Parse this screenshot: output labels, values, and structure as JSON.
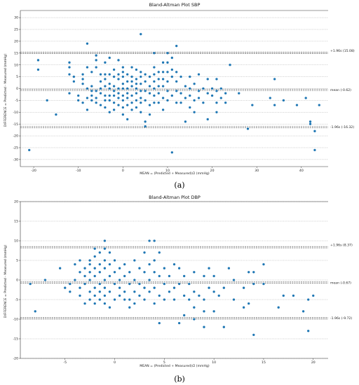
{
  "figure": {
    "panel_a_label": "(a)",
    "panel_b_label": "(b)"
  },
  "chart_data": [
    {
      "type": "scatter",
      "title": "Bland-Altman Plot SBP",
      "xlabel": "MEAN = (Predicted + Measured)/2 (mmHg)",
      "ylabel": "DIFFERENCE = Predicted - Measured (mmHg)",
      "xlim": [
        -23,
        46
      ],
      "ylim": [
        -33,
        33
      ],
      "xticks": [
        -20,
        -10,
        0,
        10,
        20,
        30,
        40
      ],
      "yticks": [
        -30,
        -25,
        -20,
        -15,
        -10,
        -5,
        0,
        5,
        10,
        15,
        20,
        25,
        30
      ],
      "color": "#1f77b4",
      "grid": "dotted horizontal",
      "reference_lines": [
        {
          "value": 15.08,
          "label": "+1.96s (15.08)"
        },
        {
          "value": -0.62,
          "label": "mean (-0.62)"
        },
        {
          "value": -16.32,
          "label": "-1.96s (-16.32)"
        }
      ],
      "points": [
        [
          -21,
          -26
        ],
        [
          -19,
          12
        ],
        [
          -19,
          8
        ],
        [
          -17,
          -5
        ],
        [
          -15,
          -11
        ],
        [
          -12,
          11
        ],
        [
          -12,
          9
        ],
        [
          -12,
          6
        ],
        [
          -12,
          -2
        ],
        [
          -11,
          5
        ],
        [
          -11,
          3
        ],
        [
          -10,
          -5
        ],
        [
          -10,
          -3
        ],
        [
          -9,
          6
        ],
        [
          -9,
          4
        ],
        [
          -9,
          2
        ],
        [
          -9,
          -6
        ],
        [
          -8,
          19
        ],
        [
          -8,
          9
        ],
        [
          -8,
          0
        ],
        [
          -8,
          -4
        ],
        [
          -8,
          -9
        ],
        [
          -7,
          7
        ],
        [
          -7,
          1
        ],
        [
          -7,
          -1
        ],
        [
          -7,
          -3
        ],
        [
          -7,
          -5
        ],
        [
          -6,
          14
        ],
        [
          -6,
          12
        ],
        [
          -6,
          9
        ],
        [
          -6,
          -1
        ],
        [
          -6,
          -4
        ],
        [
          -6,
          -6
        ],
        [
          -5,
          6
        ],
        [
          -5,
          3
        ],
        [
          -5,
          0
        ],
        [
          -5,
          -2
        ],
        [
          -5,
          -7
        ],
        [
          -4,
          11
        ],
        [
          -4,
          6
        ],
        [
          -4,
          4
        ],
        [
          -4,
          1
        ],
        [
          -4,
          -3
        ],
        [
          -4,
          -5
        ],
        [
          -4,
          -8
        ],
        [
          -3,
          13
        ],
        [
          -3,
          6
        ],
        [
          -3,
          2
        ],
        [
          -3,
          0
        ],
        [
          -3,
          -3
        ],
        [
          -3,
          -5
        ],
        [
          -3,
          -10
        ],
        [
          -2,
          8
        ],
        [
          -2,
          5
        ],
        [
          -2,
          1
        ],
        [
          -2,
          -1
        ],
        [
          -2,
          -3
        ],
        [
          -2,
          -6
        ],
        [
          -2,
          -9
        ],
        [
          -1,
          12
        ],
        [
          -1,
          6
        ],
        [
          -1,
          4
        ],
        [
          -1,
          0
        ],
        [
          -1,
          -2
        ],
        [
          -1,
          -4
        ],
        [
          -1,
          -7
        ],
        [
          0,
          9
        ],
        [
          0,
          7
        ],
        [
          0,
          5
        ],
        [
          0,
          2
        ],
        [
          0,
          0
        ],
        [
          0,
          -3
        ],
        [
          0,
          -5
        ],
        [
          0,
          -8
        ],
        [
          0,
          -11
        ],
        [
          1,
          6
        ],
        [
          1,
          3
        ],
        [
          1,
          0
        ],
        [
          1,
          -2
        ],
        [
          1,
          -4
        ],
        [
          1,
          -7
        ],
        [
          1,
          -13
        ],
        [
          2,
          9
        ],
        [
          2,
          5
        ],
        [
          2,
          3
        ],
        [
          2,
          1
        ],
        [
          2,
          -3
        ],
        [
          2,
          -6
        ],
        [
          2,
          -9
        ],
        [
          3,
          8
        ],
        [
          3,
          4
        ],
        [
          3,
          2
        ],
        [
          3,
          0
        ],
        [
          3,
          -2
        ],
        [
          3,
          -5
        ],
        [
          3,
          -8
        ],
        [
          4,
          23
        ],
        [
          4,
          7
        ],
        [
          4,
          5
        ],
        [
          4,
          2
        ],
        [
          4,
          -1
        ],
        [
          4,
          -4
        ],
        [
          4,
          -6
        ],
        [
          4,
          -10
        ],
        [
          5,
          6
        ],
        [
          5,
          3
        ],
        [
          5,
          -1
        ],
        [
          5,
          -5
        ],
        [
          5,
          -14
        ],
        [
          5,
          -16
        ],
        [
          6,
          5
        ],
        [
          6,
          1
        ],
        [
          6,
          -2
        ],
        [
          6,
          -7
        ],
        [
          6,
          -11
        ],
        [
          7,
          15
        ],
        [
          7,
          9
        ],
        [
          7,
          6
        ],
        [
          7,
          3
        ],
        [
          7,
          0
        ],
        [
          7,
          -3
        ],
        [
          7,
          -6
        ],
        [
          8,
          7
        ],
        [
          8,
          4
        ],
        [
          8,
          1
        ],
        [
          8,
          -2
        ],
        [
          8,
          -6
        ],
        [
          9,
          11
        ],
        [
          9,
          7
        ],
        [
          9,
          4
        ],
        [
          9,
          1
        ],
        [
          9,
          -4
        ],
        [
          9,
          -9
        ],
        [
          10,
          15
        ],
        [
          10,
          11
        ],
        [
          10,
          7
        ],
        [
          10,
          3
        ],
        [
          10,
          -1
        ],
        [
          10,
          -5
        ],
        [
          11,
          13
        ],
        [
          11,
          8
        ],
        [
          11,
          5
        ],
        [
          11,
          -3
        ],
        [
          11,
          -27
        ],
        [
          12,
          18
        ],
        [
          12,
          7
        ],
        [
          12,
          3
        ],
        [
          12,
          -1
        ],
        [
          12,
          -6
        ],
        [
          13,
          5
        ],
        [
          13,
          -2
        ],
        [
          13,
          -6
        ],
        [
          14,
          1
        ],
        [
          14,
          -4
        ],
        [
          14,
          -14
        ],
        [
          15,
          5
        ],
        [
          15,
          0
        ],
        [
          15,
          -3
        ],
        [
          15,
          -8
        ],
        [
          16,
          2
        ],
        [
          16,
          -5
        ],
        [
          16,
          -10
        ],
        [
          17,
          6
        ],
        [
          17,
          -1
        ],
        [
          17,
          -4
        ],
        [
          18,
          0
        ],
        [
          18,
          -6
        ],
        [
          19,
          4
        ],
        [
          19,
          -2
        ],
        [
          19,
          -13
        ],
        [
          20,
          0
        ],
        [
          20,
          -3
        ],
        [
          21,
          4
        ],
        [
          21,
          -1
        ],
        [
          21,
          -6
        ],
        [
          21,
          -10
        ],
        [
          22,
          0
        ],
        [
          22,
          -4
        ],
        [
          23,
          -2
        ],
        [
          23,
          -6
        ],
        [
          24,
          10
        ],
        [
          26,
          -2
        ],
        [
          28,
          -17
        ],
        [
          29,
          -7
        ],
        [
          33,
          -4
        ],
        [
          34,
          4
        ],
        [
          34,
          -7
        ],
        [
          36,
          -5
        ],
        [
          39,
          -7
        ],
        [
          41,
          -4
        ],
        [
          42,
          -15
        ],
        [
          42,
          -14
        ],
        [
          43,
          -18
        ],
        [
          43,
          -26
        ],
        [
          44,
          -7
        ]
      ]
    },
    {
      "type": "scatter",
      "title": "Bland-Altman Plot DBP",
      "xlabel": "MEAN = (Predicted + Measured)/2 (mmHg)",
      "ylabel": "DIFFERENCE = Predicted - Measured (mmHg)",
      "xlim": [
        -9.5,
        21.5
      ],
      "ylim": [
        -20,
        20
      ],
      "xticks": [
        -5,
        0,
        5,
        10,
        15,
        20
      ],
      "yticks": [
        -20,
        -15,
        -10,
        -5,
        0,
        5,
        10,
        15,
        20
      ],
      "color": "#1f77b4",
      "grid": "dotted horizontal",
      "reference_lines": [
        {
          "value": 8.37,
          "label": "+1.96s (8.37)"
        },
        {
          "value": -0.67,
          "label": "mean (-0.67)"
        },
        {
          "value": -9.72,
          "label": "-1.96s (-9.72)"
        }
      ],
      "points": [
        [
          -8.5,
          -1
        ],
        [
          -8,
          -8
        ],
        [
          -7,
          0
        ],
        [
          -5.5,
          3
        ],
        [
          -5,
          -2
        ],
        [
          -4.5,
          -3
        ],
        [
          -4.5,
          -1
        ],
        [
          -4,
          4
        ],
        [
          -4,
          0
        ],
        [
          -3.5,
          5
        ],
        [
          -3.5,
          2
        ],
        [
          -3.5,
          -2
        ],
        [
          -3.5,
          -4
        ],
        [
          -3,
          3
        ],
        [
          -3,
          1
        ],
        [
          -3,
          -1
        ],
        [
          -3,
          -6
        ],
        [
          -2.5,
          5
        ],
        [
          -2.5,
          4
        ],
        [
          -2.5,
          2
        ],
        [
          -2.5,
          0
        ],
        [
          -2.5,
          -3
        ],
        [
          -2.5,
          -5
        ],
        [
          -2,
          8
        ],
        [
          -2,
          6
        ],
        [
          -2,
          3
        ],
        [
          -2,
          1
        ],
        [
          -2,
          -2
        ],
        [
          -2,
          -4
        ],
        [
          -2,
          -6
        ],
        [
          -1.5,
          7
        ],
        [
          -1.5,
          4
        ],
        [
          -1.5,
          2
        ],
        [
          -1.5,
          -1
        ],
        [
          -1.5,
          -3
        ],
        [
          -1.5,
          -5
        ],
        [
          -1,
          10
        ],
        [
          -1,
          8
        ],
        [
          -1,
          5
        ],
        [
          -1,
          3
        ],
        [
          -1,
          0
        ],
        [
          -1,
          -2
        ],
        [
          -1,
          -4
        ],
        [
          -1,
          -6
        ],
        [
          -0.5,
          7
        ],
        [
          -0.5,
          4
        ],
        [
          -0.5,
          1
        ],
        [
          -0.5,
          -3
        ],
        [
          -0.5,
          -7
        ],
        [
          0,
          5
        ],
        [
          0,
          2
        ],
        [
          0,
          -1
        ],
        [
          0,
          -5
        ],
        [
          0.5,
          3
        ],
        [
          0.5,
          0
        ],
        [
          0.5,
          -2
        ],
        [
          0.5,
          -4
        ],
        [
          1,
          4
        ],
        [
          1,
          1
        ],
        [
          1,
          -3
        ],
        [
          1,
          -5
        ],
        [
          1.5,
          2
        ],
        [
          1.5,
          -1
        ],
        [
          1.5,
          -5
        ],
        [
          1.5,
          -7
        ],
        [
          2,
          5
        ],
        [
          2,
          0
        ],
        [
          2,
          -3
        ],
        [
          2,
          -6
        ],
        [
          2.5,
          3
        ],
        [
          2.5,
          -1
        ],
        [
          2.5,
          -4
        ],
        [
          3,
          7
        ],
        [
          3,
          2
        ],
        [
          3,
          -2
        ],
        [
          3,
          -5
        ],
        [
          3.5,
          10
        ],
        [
          3.5,
          4
        ],
        [
          3.5,
          0
        ],
        [
          3.5,
          -3
        ],
        [
          4,
          10
        ],
        [
          4,
          5
        ],
        [
          4,
          2
        ],
        [
          4,
          -2
        ],
        [
          4,
          -6
        ],
        [
          4.5,
          7
        ],
        [
          4.5,
          1
        ],
        [
          4.5,
          -4
        ],
        [
          4.5,
          -11
        ],
        [
          5,
          3
        ],
        [
          5,
          -1
        ],
        [
          5,
          -5
        ],
        [
          5.5,
          1
        ],
        [
          5.5,
          -3
        ],
        [
          6,
          4
        ],
        [
          6,
          -2
        ],
        [
          6,
          -5
        ],
        [
          6.5,
          3
        ],
        [
          6.5,
          -1
        ],
        [
          6.5,
          -11
        ],
        [
          7,
          1
        ],
        [
          7,
          -4
        ],
        [
          7,
          -9
        ],
        [
          7.5,
          -1
        ],
        [
          7.5,
          -5
        ],
        [
          8,
          2
        ],
        [
          8,
          -3
        ],
        [
          8,
          -7
        ],
        [
          8,
          -10
        ],
        [
          8.5,
          -4
        ],
        [
          9,
          1
        ],
        [
          9,
          -5
        ],
        [
          9,
          -8
        ],
        [
          9,
          -12
        ],
        [
          9.5,
          3
        ],
        [
          9.5,
          -2
        ],
        [
          10,
          1
        ],
        [
          10,
          -3
        ],
        [
          10,
          -8
        ],
        [
          10.5,
          -4
        ],
        [
          11,
          -2
        ],
        [
          11,
          -12
        ],
        [
          11.5,
          3
        ],
        [
          12,
          0
        ],
        [
          12,
          -5
        ],
        [
          13,
          -2
        ],
        [
          13,
          -7
        ],
        [
          13.5,
          2
        ],
        [
          13.5,
          -6
        ],
        [
          14,
          -1
        ],
        [
          14,
          2
        ],
        [
          14,
          -14
        ],
        [
          15,
          4
        ],
        [
          15,
          -1
        ],
        [
          16.5,
          -7
        ],
        [
          17,
          -4
        ],
        [
          18,
          -4
        ],
        [
          19,
          -8
        ],
        [
          19.5,
          -5
        ],
        [
          19.5,
          -13
        ],
        [
          20,
          -4
        ]
      ]
    }
  ]
}
